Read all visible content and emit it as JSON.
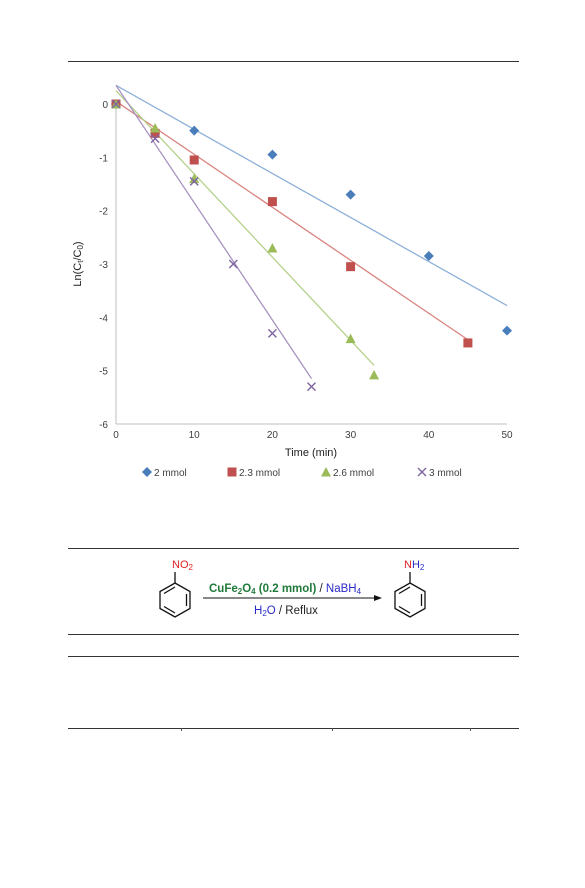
{
  "chart_data": {
    "type": "scatter",
    "xlabel": "Time (min)",
    "ylabel": "Ln(Ct/C0)",
    "ylabel_main": "Ln(C",
    "ylabel_sub1": "t",
    "ylabel_mid": "/C",
    "ylabel_sub2": "0",
    "ylabel_end": ")",
    "xlim": [
      0,
      50
    ],
    "ylim": [
      -6,
      0
    ],
    "xticks": [
      "0",
      "10",
      "20",
      "30",
      "40",
      "50"
    ],
    "yticks": [
      "0",
      "-1",
      "-2",
      "-3",
      "-4",
      "-5",
      "-6"
    ],
    "legend_position": "bottom",
    "grid": false,
    "series": [
      {
        "name": "2 mmol",
        "marker": "diamond",
        "color": "#4A7EBB",
        "line_color": "#8EB0D8",
        "x": [
          0,
          5,
          10,
          20,
          30,
          40,
          50
        ],
        "y": [
          0,
          -0.55,
          -0.5,
          -0.95,
          -1.7,
          -2.85,
          -4.25
        ],
        "fit": [
          [
            0,
            0.35
          ],
          [
            50,
            -3.78
          ]
        ]
      },
      {
        "name": "2.3 mmol",
        "marker": "square",
        "color": "#C0504D",
        "line_color": "#D9837F",
        "x": [
          0,
          5,
          10,
          20,
          30,
          45
        ],
        "y": [
          0,
          -0.55,
          -1.05,
          -1.83,
          -3.05,
          -4.48
        ],
        "fit": [
          [
            0,
            0.05
          ],
          [
            45,
            -4.42
          ]
        ]
      },
      {
        "name": "2.6 mmol",
        "marker": "triangle",
        "color": "#9BBB59",
        "line_color": "#B5D08A",
        "x": [
          0,
          5,
          10,
          20,
          30,
          33
        ],
        "y": [
          0,
          -0.45,
          -1.4,
          -2.7,
          -4.4,
          -5.08
        ],
        "fit": [
          [
            0,
            0.25
          ],
          [
            33,
            -4.9
          ]
        ]
      },
      {
        "name": "3 mmol",
        "marker": "x",
        "color": "#8064A2",
        "line_color": "#A894C2",
        "x": [
          0,
          5,
          10,
          15,
          20,
          25
        ],
        "y": [
          0,
          -0.65,
          -1.45,
          -3.0,
          -4.3,
          -5.3
        ],
        "fit": [
          [
            0,
            0.35
          ],
          [
            25,
            -5.15
          ]
        ]
      }
    ]
  },
  "scheme": {
    "reactant_group": "NO",
    "reactant_group_sub": "2",
    "product_group_n": "N",
    "product_group_h": "H",
    "product_group_sub": "2",
    "catalyst_main": "CuFe",
    "catalyst_sub1": "2",
    "catalyst_o": "O",
    "catalyst_sub2": "4",
    "catalyst_amount": " (0.2 mmol)",
    "slash1": " / ",
    "reductant_main": "NaBH",
    "reductant_sub": "4",
    "solvent_main": "H",
    "solvent_sub": "2",
    "solvent_o": "O",
    "condition": " / Reflux",
    "colors": {
      "catalyst": "#1F7A3A",
      "reductant": "#2A2AC8",
      "nitrogen_red": "#E02020",
      "hydrogen_blue": "#2A2AC8"
    }
  }
}
